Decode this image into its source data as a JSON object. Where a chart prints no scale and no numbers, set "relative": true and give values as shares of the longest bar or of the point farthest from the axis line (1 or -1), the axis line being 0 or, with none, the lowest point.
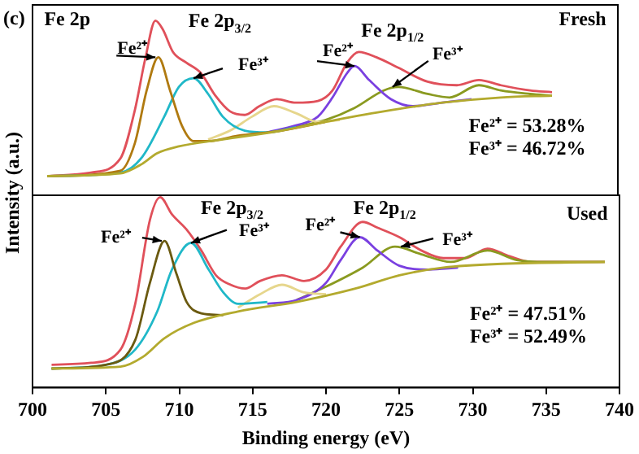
{
  "chart_data": [
    {
      "type": "line",
      "title": "(c)",
      "ylabel": "Intensity (a.u.)",
      "relative": true,
      "marker": "none",
      "xlim": [
        700,
        740
      ],
      "xticks": [
        700,
        705,
        710,
        715,
        720,
        725,
        730,
        735,
        740
      ],
      "tick_labels": false,
      "series": [
        {
          "color": "#b3aa2e",
          "x": [
            701,
            706,
            707.5,
            708.5,
            710,
            713,
            717,
            720,
            724,
            728,
            732,
            735.5
          ],
          "values": [
            0.11,
            0.125,
            0.18,
            0.24,
            0.28,
            0.32,
            0.37,
            0.42,
            0.48,
            0.53,
            0.56,
            0.57
          ]
        },
        {
          "color": "#b07a10",
          "x": [
            701,
            706,
            707,
            707.8,
            708.6,
            709.4,
            710.2,
            711,
            712,
            714,
            717,
            720
          ],
          "values": [
            0.11,
            0.14,
            0.3,
            0.6,
            0.79,
            0.6,
            0.4,
            0.31,
            0.31,
            0.34,
            0.37,
            0.42
          ]
        },
        {
          "color": "#20b8c8",
          "x": [
            701,
            706,
            707.5,
            709,
            710,
            711,
            712,
            713,
            714.5,
            716,
            718
          ],
          "values": [
            0.11,
            0.13,
            0.22,
            0.45,
            0.62,
            0.67,
            0.58,
            0.45,
            0.37,
            0.36,
            0.39
          ]
        },
        {
          "color": "#e6d68c",
          "x": [
            712,
            713.5,
            715,
            716.5,
            718,
            719.5,
            721
          ],
          "values": [
            0.32,
            0.37,
            0.45,
            0.51,
            0.47,
            0.42,
            0.43
          ]
        },
        {
          "color": "#7a40e0",
          "x": [
            716,
            718,
            719.5,
            720.5,
            721.5,
            722,
            723,
            724.5,
            726,
            728,
            730
          ],
          "values": [
            0.36,
            0.4,
            0.45,
            0.56,
            0.7,
            0.74,
            0.66,
            0.55,
            0.51,
            0.53,
            0.55
          ]
        },
        {
          "color": "#8a9a20",
          "x": [
            718,
            720,
            722,
            724,
            725,
            727,
            728.5,
            730.5,
            732,
            734,
            735.5
          ],
          "values": [
            0.39,
            0.43,
            0.5,
            0.6,
            0.62,
            0.58,
            0.56,
            0.63,
            0.6,
            0.58,
            0.57
          ]
        },
        {
          "color": "#e0505a",
          "x": [
            701,
            704,
            706,
            707,
            707.7,
            708.4,
            708.9,
            709.6,
            710.5,
            711.5,
            712.5,
            713.5,
            714.5,
            715.5,
            716.7,
            718,
            719.5,
            720.5,
            721.5,
            722.3,
            723.5,
            725,
            727,
            729,
            730.5,
            732,
            734,
            735.5
          ],
          "values": [
            0.11,
            0.13,
            0.21,
            0.49,
            0.78,
            1,
            0.95,
            0.82,
            0.76,
            0.7,
            0.57,
            0.48,
            0.46,
            0.51,
            0.55,
            0.53,
            0.54,
            0.6,
            0.76,
            0.82,
            0.79,
            0.73,
            0.65,
            0.63,
            0.66,
            0.63,
            0.6,
            0.59
          ]
        }
      ],
      "annotations": [
        "Fe 2p",
        "Fresh",
        "Fe 2p$_{3/2}$",
        "Fe 2p$_{1/2}$",
        {
          "text": "Fe²⁺",
          "x": 708.4,
          "y": 0.79
        },
        {
          "text": "Fe³⁺",
          "x": 711,
          "y": 0.67
        },
        {
          "text": "Fe²⁺",
          "x": 722,
          "y": 0.74
        },
        {
          "text": "Fe³⁺",
          "x": 724.6,
          "y": 0.62
        },
        "Fe²⁺ = 53.28%",
        "Fe³⁺ = 46.72%"
      ]
    },
    {
      "type": "line",
      "xlabel": "Binding energy (eV)",
      "relative": true,
      "marker": "none",
      "xlim": [
        700,
        740
      ],
      "xticks": [
        700,
        705,
        710,
        715,
        720,
        725,
        730,
        735,
        740
      ],
      "series": [
        {
          "color": "#b3aa2e",
          "x": [
            701.3,
            706,
            707.5,
            709,
            711,
            714,
            718,
            722,
            725,
            728,
            732,
            739
          ],
          "values": [
            0.1,
            0.11,
            0.16,
            0.26,
            0.34,
            0.4,
            0.45,
            0.52,
            0.59,
            0.63,
            0.65,
            0.66
          ]
        },
        {
          "color": "#6b5a10",
          "x": [
            701.3,
            705,
            707,
            708,
            709,
            709.8,
            710.5,
            711.5,
            713
          ],
          "values": [
            0.1,
            0.12,
            0.25,
            0.55,
            0.77,
            0.6,
            0.45,
            0.39,
            0.38
          ]
        },
        {
          "color": "#20b8c8",
          "x": [
            701.3,
            705,
            707,
            708.5,
            709.5,
            710.8,
            712,
            713,
            714,
            716
          ],
          "values": [
            0.1,
            0.12,
            0.2,
            0.4,
            0.62,
            0.76,
            0.62,
            0.5,
            0.44,
            0.45
          ]
        },
        {
          "color": "#e6d68c",
          "x": [
            714,
            715.5,
            717,
            718.5,
            720
          ],
          "values": [
            0.42,
            0.49,
            0.54,
            0.5,
            0.49
          ]
        },
        {
          "color": "#7a40e0",
          "x": [
            716,
            718,
            720,
            721,
            722.3,
            723.5,
            725,
            727,
            729
          ],
          "values": [
            0.44,
            0.46,
            0.55,
            0.67,
            0.79,
            0.72,
            0.64,
            0.62,
            0.63
          ]
        },
        {
          "color": "#8a9a20",
          "x": [
            718,
            720,
            722.5,
            724.7,
            726.5,
            728.5,
            731,
            733,
            735,
            739
          ],
          "values": [
            0.46,
            0.53,
            0.63,
            0.74,
            0.7,
            0.66,
            0.72,
            0.67,
            0.66,
            0.66
          ]
        },
        {
          "color": "#e0505a",
          "x": [
            701.3,
            704,
            706,
            707,
            708,
            708.7,
            709.5,
            710.5,
            711.5,
            712.5,
            713.5,
            714.5,
            715.5,
            717,
            718.5,
            720,
            721,
            722.5,
            723.5,
            725,
            726.5,
            728,
            729.5,
            731,
            732.5,
            734,
            737,
            739
          ],
          "values": [
            0.12,
            0.13,
            0.2,
            0.44,
            0.88,
            1,
            0.91,
            0.83,
            0.72,
            0.59,
            0.54,
            0.52,
            0.56,
            0.59,
            0.56,
            0.62,
            0.74,
            0.87,
            0.84,
            0.79,
            0.72,
            0.68,
            0.68,
            0.73,
            0.69,
            0.66,
            0.66,
            0.66
          ]
        }
      ],
      "annotations": [
        "Used",
        "Fe 2p$_{3/2}$",
        "Fe 2p$_{1/2}$",
        {
          "text": "Fe²⁺",
          "x": 708.8,
          "y": 0.77
        },
        {
          "text": "Fe³⁺",
          "x": 710.8,
          "y": 0.76
        },
        {
          "text": "Fe²⁺",
          "x": 722.3,
          "y": 0.79
        },
        {
          "text": "Fe³⁺",
          "x": 725.1,
          "y": 0.74
        },
        "Fe²⁺ = 47.51%",
        "Fe³⁺ = 52.49%"
      ]
    }
  ]
}
